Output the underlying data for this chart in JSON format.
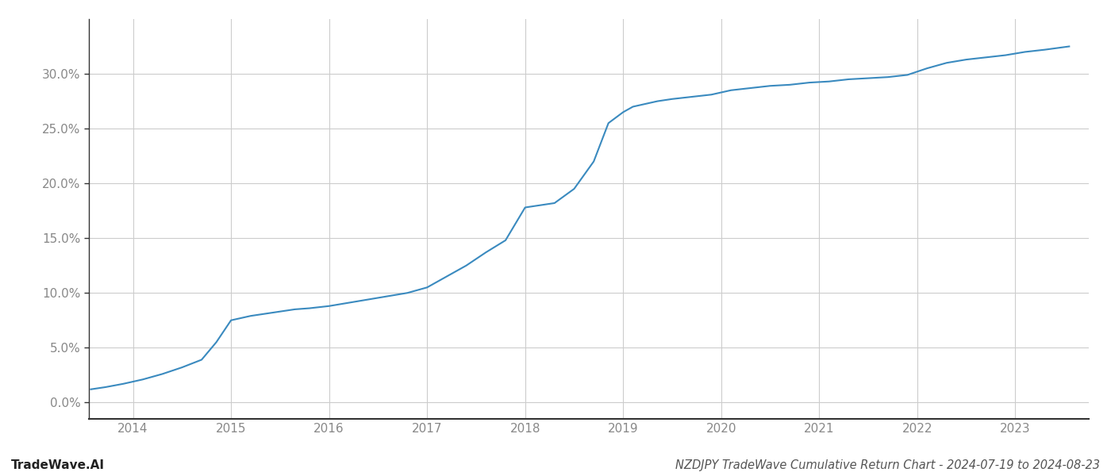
{
  "title": "NZDJPY TradeWave Cumulative Return Chart - 2024-07-19 to 2024-08-23",
  "watermark": "TradeWave.AI",
  "line_color": "#3a8abf",
  "background_color": "#ffffff",
  "grid_color": "#cccccc",
  "x_years": [
    2014,
    2015,
    2016,
    2017,
    2018,
    2019,
    2020,
    2021,
    2022,
    2023
  ],
  "x_values": [
    2013.57,
    2013.72,
    2013.9,
    2014.1,
    2014.3,
    2014.5,
    2014.7,
    2014.85,
    2015.0,
    2015.1,
    2015.2,
    2015.35,
    2015.5,
    2015.65,
    2015.8,
    2016.0,
    2016.2,
    2016.4,
    2016.6,
    2016.8,
    2017.0,
    2017.2,
    2017.4,
    2017.6,
    2017.8,
    2018.0,
    2018.15,
    2018.3,
    2018.5,
    2018.7,
    2018.85,
    2019.0,
    2019.1,
    2019.2,
    2019.35,
    2019.5,
    2019.7,
    2019.9,
    2020.1,
    2020.3,
    2020.5,
    2020.7,
    2020.9,
    2021.1,
    2021.3,
    2021.5,
    2021.7,
    2021.9,
    2022.1,
    2022.3,
    2022.5,
    2022.7,
    2022.9,
    2023.1,
    2023.3,
    2023.55
  ],
  "y_values": [
    1.2,
    1.4,
    1.7,
    2.1,
    2.6,
    3.2,
    3.9,
    5.5,
    7.5,
    7.7,
    7.9,
    8.1,
    8.3,
    8.5,
    8.6,
    8.8,
    9.1,
    9.4,
    9.7,
    10.0,
    10.5,
    11.5,
    12.5,
    13.7,
    14.8,
    17.8,
    18.0,
    18.2,
    19.5,
    22.0,
    25.5,
    26.5,
    27.0,
    27.2,
    27.5,
    27.7,
    27.9,
    28.1,
    28.5,
    28.7,
    28.9,
    29.0,
    29.2,
    29.3,
    29.5,
    29.6,
    29.7,
    29.9,
    30.5,
    31.0,
    31.3,
    31.5,
    31.7,
    32.0,
    32.2,
    32.5
  ],
  "ytick_labels": [
    "0.0%",
    "5.0%",
    "10.0%",
    "15.0%",
    "20.0%",
    "25.0%",
    "30.0%"
  ],
  "ytick_values": [
    0,
    5,
    10,
    15,
    20,
    25,
    30
  ],
  "ylim": [
    -1.5,
    35
  ],
  "xlim": [
    2013.55,
    2023.75
  ],
  "line_width": 1.5,
  "title_fontsize": 10.5,
  "watermark_fontsize": 11,
  "tick_fontsize": 11,
  "axis_color": "#555555",
  "spine_color": "#333333",
  "tick_color": "#888888"
}
